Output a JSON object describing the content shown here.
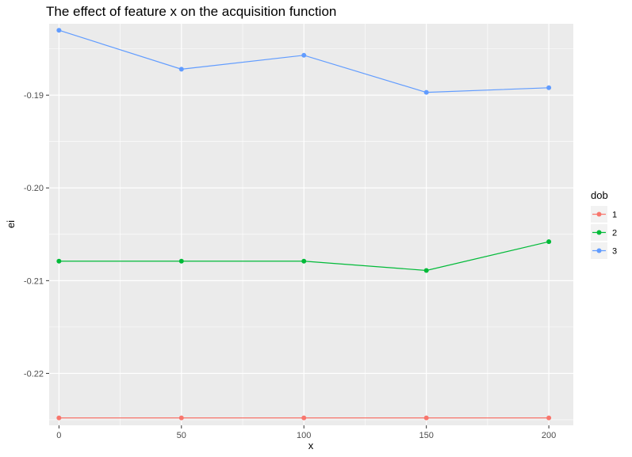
{
  "chart_data": {
    "type": "line",
    "title": "The effect of feature x on the acquisition function",
    "xlabel": "x",
    "ylabel": "ei",
    "x": [
      0,
      50,
      100,
      150,
      200
    ],
    "x_ticks": [
      "0",
      "50",
      "100",
      "150",
      "200"
    ],
    "y_ticks": [
      "-0.19",
      "-0.20",
      "-0.21",
      "-0.22"
    ],
    "y_tick_values": [
      -0.19,
      -0.2,
      -0.21,
      -0.22
    ],
    "xlim": [
      -4,
      210
    ],
    "ylim": [
      -0.2256,
      -0.1823
    ],
    "grid": true,
    "legend": {
      "title": "dob",
      "position": "right"
    },
    "series": [
      {
        "name": "1",
        "color": "#F8766D",
        "values": [
          -0.2248,
          -0.2248,
          -0.2248,
          -0.2248,
          -0.2248
        ]
      },
      {
        "name": "2",
        "color": "#00BA38",
        "values": [
          -0.2079,
          -0.2079,
          -0.2079,
          -0.2089,
          -0.2058
        ]
      },
      {
        "name": "3",
        "color": "#619CFF",
        "values": [
          -0.183,
          -0.1872,
          -0.1857,
          -0.1897,
          -0.1892
        ]
      }
    ]
  }
}
